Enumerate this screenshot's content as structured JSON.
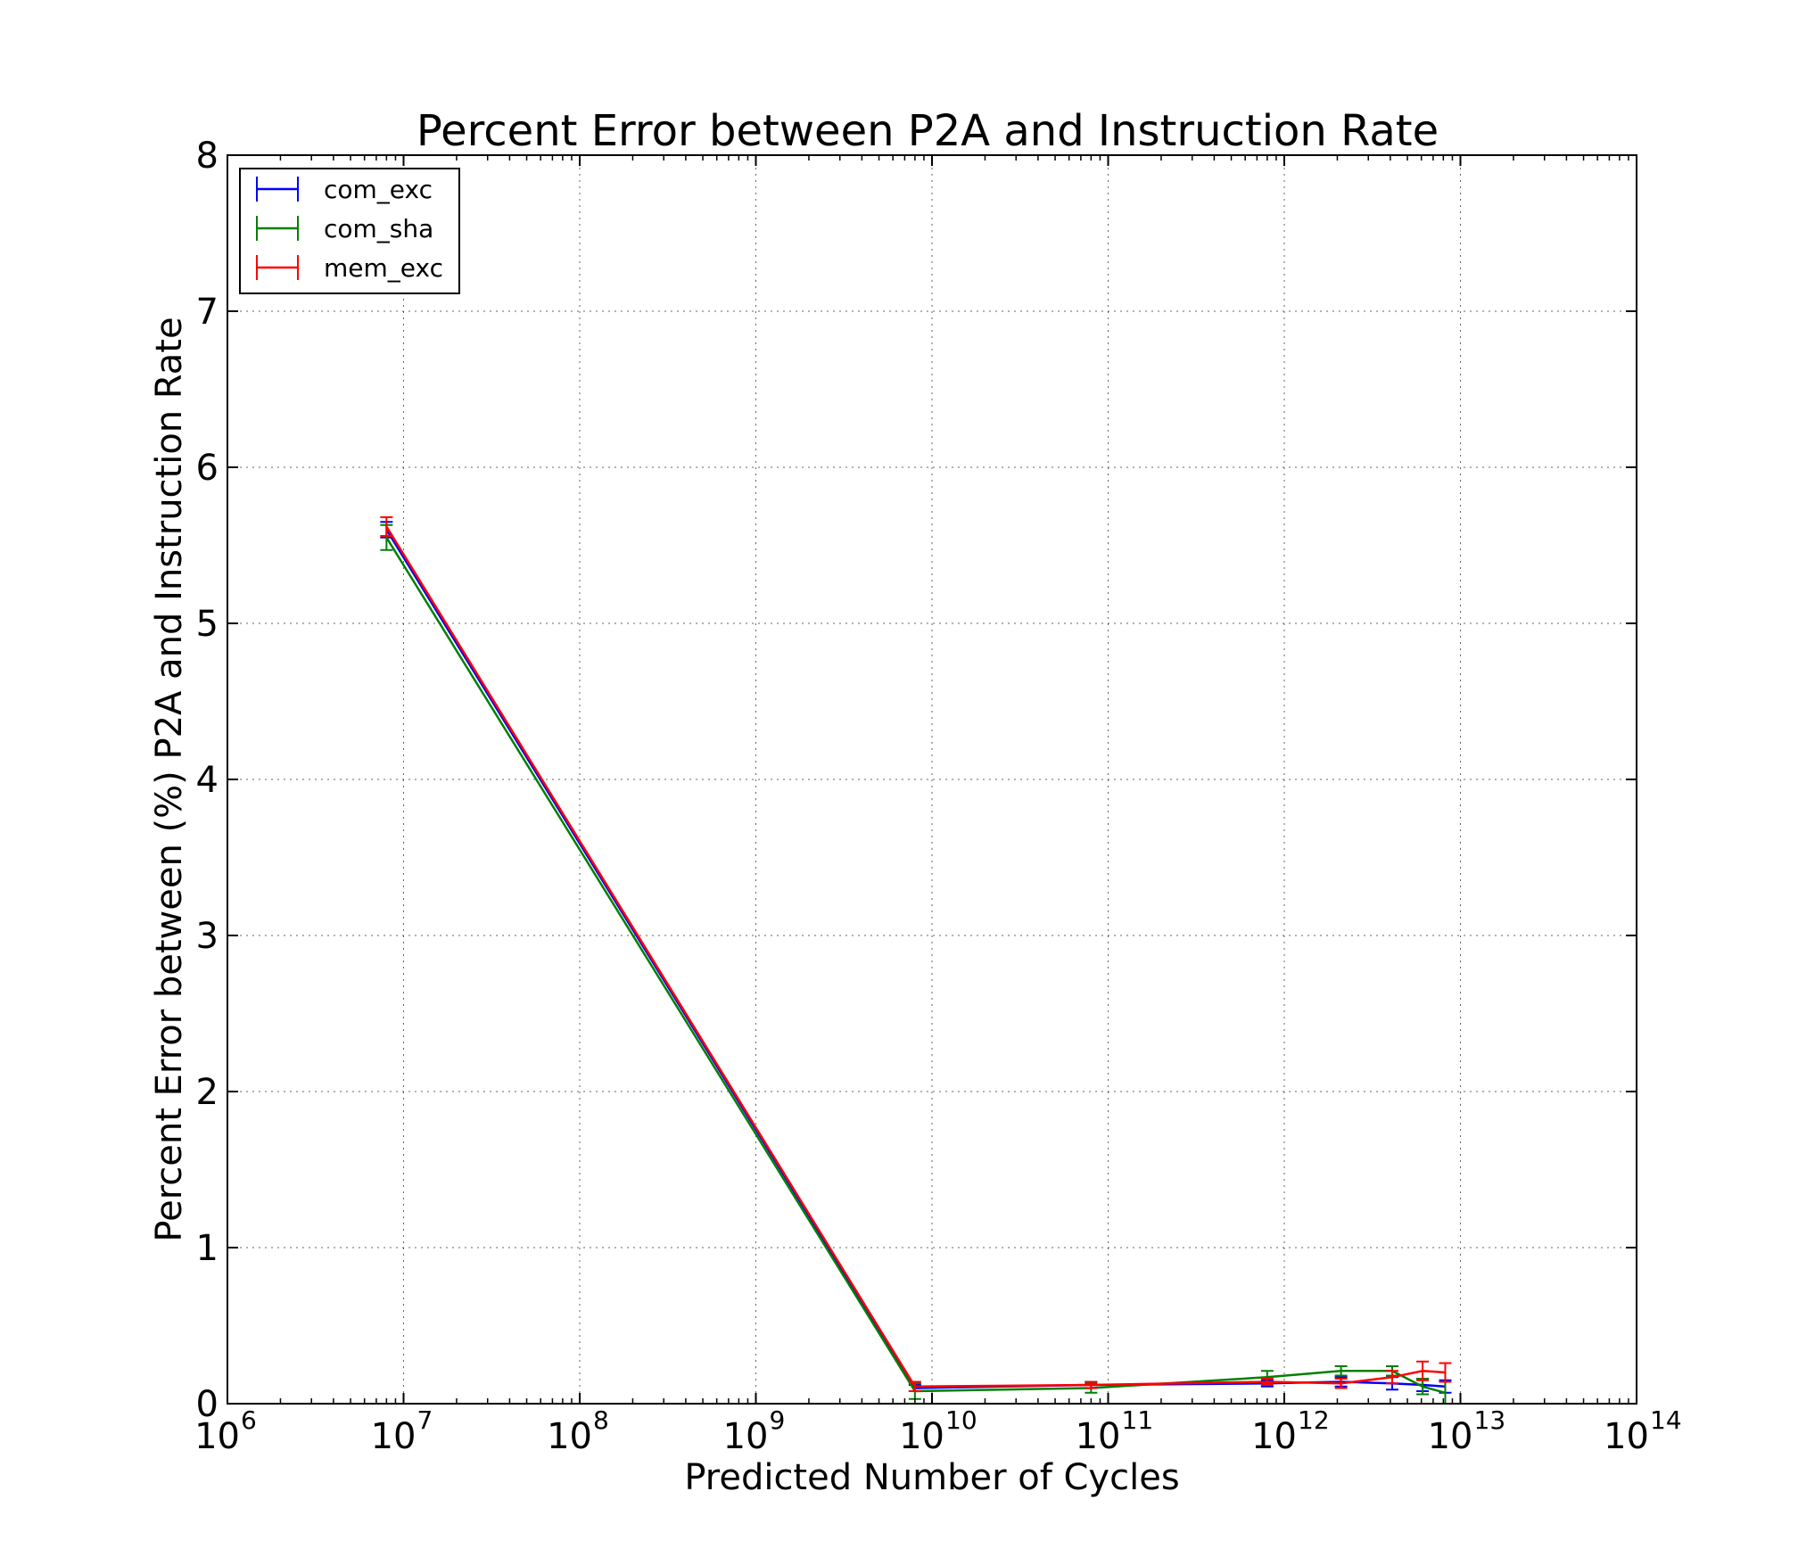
{
  "chart_data": {
    "type": "line",
    "title": "Percent Error between P2A and Instruction Rate",
    "xlabel": "Predicted Number of Cycles",
    "ylabel": "Percent Error between (%) P2A and Instruction Rate",
    "x_scale": "log",
    "xlim": [
      1000000,
      100000000000000
    ],
    "ylim": [
      0,
      8
    ],
    "x_ticks": [
      {
        "base": "10",
        "exp": "6",
        "value": 1000000
      },
      {
        "base": "10",
        "exp": "7",
        "value": 10000000
      },
      {
        "base": "10",
        "exp": "8",
        "value": 100000000
      },
      {
        "base": "10",
        "exp": "9",
        "value": 1000000000
      },
      {
        "base": "10",
        "exp": "10",
        "value": 10000000000
      },
      {
        "base": "10",
        "exp": "11",
        "value": 100000000000
      },
      {
        "base": "10",
        "exp": "12",
        "value": 1000000000000
      },
      {
        "base": "10",
        "exp": "13",
        "value": 10000000000000
      },
      {
        "base": "10",
        "exp": "14",
        "value": 100000000000000
      }
    ],
    "y_ticks": [
      "0",
      "1",
      "2",
      "3",
      "4",
      "5",
      "6",
      "7",
      "8"
    ],
    "grid": true,
    "legend_position": "upper-left",
    "series": [
      {
        "name": "com_exc",
        "color": "#0000ff",
        "x": [
          8000000,
          8000000000,
          80000000000,
          800000000000,
          2100000000000,
          4100000000000,
          6100000000000,
          8200000000000
        ],
        "y": [
          5.6,
          0.1,
          0.12,
          0.13,
          0.14,
          0.13,
          0.12,
          0.11
        ],
        "err": [
          0.05,
          0.02,
          0.02,
          0.02,
          0.03,
          0.04,
          0.04,
          0.04
        ]
      },
      {
        "name": "com_sha",
        "color": "#008000",
        "x": [
          8000000,
          8000000000,
          80000000000,
          800000000000,
          2100000000000,
          4100000000000,
          6100000000000,
          8200000000000
        ],
        "y": [
          5.55,
          0.08,
          0.1,
          0.17,
          0.21,
          0.21,
          0.11,
          0.07
        ],
        "err": [
          0.08,
          0.05,
          0.03,
          0.04,
          0.03,
          0.03,
          0.05,
          0.07
        ]
      },
      {
        "name": "mem_exc",
        "color": "#ff0000",
        "x": [
          8000000,
          8000000000,
          80000000000,
          800000000000,
          2100000000000,
          4100000000000,
          6100000000000,
          8200000000000
        ],
        "y": [
          5.62,
          0.11,
          0.12,
          0.14,
          0.13,
          0.17,
          0.21,
          0.2
        ],
        "err": [
          0.06,
          0.03,
          0.02,
          0.02,
          0.03,
          0.04,
          0.06,
          0.06
        ]
      }
    ]
  }
}
